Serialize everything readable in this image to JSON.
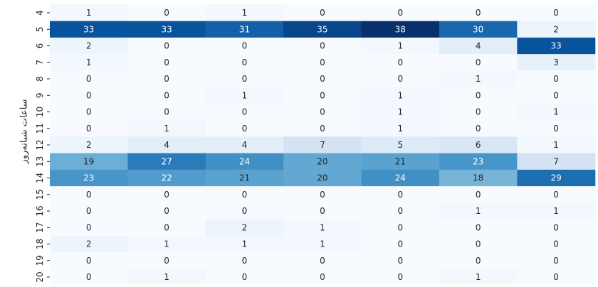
{
  "chart_data": {
    "type": "heatmap",
    "ylabel": "ساعات شبانه‌روز",
    "rows": [
      "4",
      "5",
      "6",
      "7",
      "8",
      "9",
      "10",
      "11",
      "12",
      "13",
      "14",
      "15",
      "16",
      "17",
      "18",
      "19",
      "20"
    ],
    "values": [
      [
        1,
        0,
        1,
        0,
        0,
        0,
        0
      ],
      [
        33,
        33,
        31,
        35,
        38,
        30,
        2
      ],
      [
        2,
        0,
        0,
        0,
        1,
        4,
        33
      ],
      [
        1,
        0,
        0,
        0,
        0,
        0,
        3
      ],
      [
        0,
        0,
        0,
        0,
        0,
        1,
        0
      ],
      [
        0,
        0,
        1,
        0,
        1,
        0,
        0
      ],
      [
        0,
        0,
        0,
        0,
        1,
        0,
        1
      ],
      [
        0,
        1,
        0,
        0,
        1,
        0,
        0
      ],
      [
        2,
        4,
        4,
        7,
        5,
        6,
        1
      ],
      [
        19,
        27,
        24,
        20,
        21,
        23,
        7
      ],
      [
        23,
        22,
        21,
        20,
        24,
        18,
        29
      ],
      [
        0,
        0,
        0,
        0,
        0,
        0,
        0
      ],
      [
        0,
        0,
        0,
        0,
        0,
        1,
        1
      ],
      [
        0,
        0,
        2,
        1,
        0,
        0,
        0
      ],
      [
        2,
        1,
        1,
        1,
        0,
        0,
        0
      ],
      [
        0,
        0,
        0,
        0,
        0,
        0,
        0
      ],
      [
        0,
        1,
        0,
        0,
        0,
        1,
        0
      ]
    ],
    "colormap": "Blues",
    "value_range": [
      0,
      38
    ],
    "annotations": true,
    "colorbar": false
  }
}
